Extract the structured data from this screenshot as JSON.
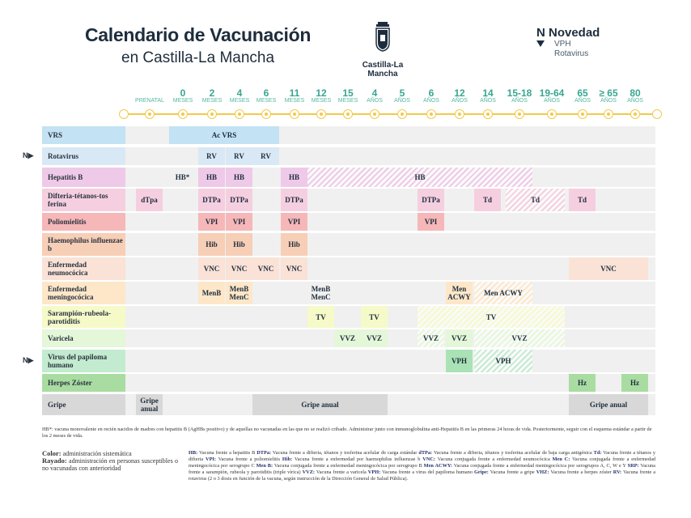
{
  "header": {
    "title": "Calendario de Vacunación",
    "subtitle": "en Castilla-La Mancha",
    "logo_text": "Castilla-La Mancha",
    "novedad": {
      "title": "N Novedad",
      "items": [
        "VPH",
        "Rotavirus"
      ]
    }
  },
  "columns": [
    {
      "n": "",
      "u": "PRENATAL"
    },
    {
      "n": "0",
      "u": "MESES"
    },
    {
      "n": "2",
      "u": "MESES"
    },
    {
      "n": "4",
      "u": "MESES"
    },
    {
      "n": "6",
      "u": "MESES"
    },
    {
      "n": "11",
      "u": "MESES"
    },
    {
      "n": "12",
      "u": "MESES"
    },
    {
      "n": "15",
      "u": "MESES"
    },
    {
      "n": "4",
      "u": "AÑOS"
    },
    {
      "n": "5",
      "u": "AÑOS"
    },
    {
      "n": "6",
      "u": "AÑOS"
    },
    {
      "n": "12",
      "u": "AÑOS"
    },
    {
      "n": "14",
      "u": "AÑOS"
    },
    {
      "n": "15-18",
      "u": "AÑOS"
    },
    {
      "n": "19-64",
      "u": "AÑOS"
    },
    {
      "n": "65",
      "u": "AÑOS"
    },
    {
      "n": "≥ 65",
      "u": "AÑOS"
    },
    {
      "n": "80",
      "u": "AÑOS"
    }
  ],
  "novedad_mark": "N▶",
  "rows": [
    {
      "label": "VRS",
      "color": "#c3e2f3",
      "cells": [
        {
          "s": 1,
          "e": 4,
          "t": "Ac VRS",
          "k": "solid"
        }
      ]
    },
    {
      "label": "Rotavirus",
      "color": "#d9e8f5",
      "novedad": true,
      "cells": [
        {
          "s": 2,
          "e": 2,
          "t": "RV",
          "k": "solid"
        },
        {
          "s": 3,
          "e": 3,
          "t": "RV",
          "k": "solid"
        },
        {
          "s": 4,
          "e": 4,
          "t": "RV",
          "k": "solid"
        }
      ]
    },
    {
      "label": "Hepatitis B",
      "color": "#efc9e8",
      "cells": [
        {
          "s": 1,
          "e": 1,
          "t": "HB*",
          "k": "plain"
        },
        {
          "s": 2,
          "e": 2,
          "t": "HB",
          "k": "solid"
        },
        {
          "s": 3,
          "e": 3,
          "t": "HB",
          "k": "solid"
        },
        {
          "s": 5,
          "e": 5,
          "t": "HB",
          "k": "solid"
        },
        {
          "s": 6,
          "e": 13,
          "t": "HB",
          "k": "hatched"
        }
      ]
    },
    {
      "label": "Difteria-tétanos-tos ferina",
      "color": "#f5cfe0",
      "cells": [
        {
          "s": 0,
          "e": 0,
          "t": "dTpa",
          "k": "solid"
        },
        {
          "s": 2,
          "e": 2,
          "t": "DTPa",
          "k": "solid"
        },
        {
          "s": 3,
          "e": 3,
          "t": "DTPa",
          "k": "solid"
        },
        {
          "s": 5,
          "e": 5,
          "t": "DTPa",
          "k": "solid"
        },
        {
          "s": 10,
          "e": 10,
          "t": "DTPa",
          "k": "solid"
        },
        {
          "s": 12,
          "e": 12,
          "t": "Td",
          "k": "solid"
        },
        {
          "s": 13,
          "e": 14,
          "t": "Td",
          "k": "hatched"
        },
        {
          "s": 15,
          "e": 15,
          "t": "Td",
          "k": "solid"
        }
      ]
    },
    {
      "label": "Poliomielitis",
      "color": "#f6b7b9",
      "cells": [
        {
          "s": 2,
          "e": 2,
          "t": "VPI",
          "k": "solid"
        },
        {
          "s": 3,
          "e": 3,
          "t": "VPI",
          "k": "solid"
        },
        {
          "s": 5,
          "e": 5,
          "t": "VPI",
          "k": "solid"
        },
        {
          "s": 10,
          "e": 10,
          "t": "VPI",
          "k": "solid"
        }
      ]
    },
    {
      "label": "Haemophilus influenzae b",
      "color": "#f7ceb6",
      "cells": [
        {
          "s": 2,
          "e": 2,
          "t": "Hib",
          "k": "solid"
        },
        {
          "s": 3,
          "e": 3,
          "t": "Hib",
          "k": "solid"
        },
        {
          "s": 5,
          "e": 5,
          "t": "Hib",
          "k": "solid"
        }
      ]
    },
    {
      "label": "Enfermedad neumocócica",
      "color": "#fae2d6",
      "cells": [
        {
          "s": 2,
          "e": 2,
          "t": "VNC",
          "k": "solid"
        },
        {
          "s": 3,
          "e": 3,
          "t": "VNC",
          "k": "solid"
        },
        {
          "s": 4,
          "e": 4,
          "t": "VNC",
          "k": "solid"
        },
        {
          "s": 5,
          "e": 5,
          "t": "VNC",
          "k": "solid"
        },
        {
          "s": 15,
          "e": 17,
          "t": "VNC",
          "k": "solid"
        }
      ]
    },
    {
      "label": "Enfermedad meningocócica",
      "color": "#fde7c8",
      "cells": [
        {
          "s": 2,
          "e": 2,
          "t": "MenB",
          "k": "solid"
        },
        {
          "s": 3,
          "e": 3,
          "t": "MenB MenC",
          "k": "solid"
        },
        {
          "s": 6,
          "e": 6,
          "t": "MenB MenC",
          "k": "plain"
        },
        {
          "s": 11,
          "e": 11,
          "t": "Men ACWY",
          "k": "solid"
        },
        {
          "s": 12,
          "e": 13,
          "t": "Men ACWY",
          "k": "hatched"
        }
      ]
    },
    {
      "label": "Sarampión-rubeola-parotiditis",
      "color": "#f5fac8",
      "cells": [
        {
          "s": 6,
          "e": 6,
          "t": "TV",
          "k": "solid"
        },
        {
          "s": 8,
          "e": 8,
          "t": "TV",
          "k": "solid"
        },
        {
          "s": 10,
          "e": 14,
          "t": "TV",
          "k": "hatched"
        }
      ]
    },
    {
      "label": "Varicela",
      "color": "#e4f7d8",
      "cells": [
        {
          "s": 7,
          "e": 7,
          "t": "VVZ",
          "k": "solid"
        },
        {
          "s": 8,
          "e": 8,
          "t": "VVZ",
          "k": "solid"
        },
        {
          "s": 10,
          "e": 10,
          "t": "VVZ",
          "k": "hatched"
        },
        {
          "s": 11,
          "e": 11,
          "t": "VVZ",
          "k": "solid"
        },
        {
          "s": 12,
          "e": 14,
          "t": "VVZ",
          "k": "hatched"
        }
      ]
    },
    {
      "label": "Virus del papiloma humano",
      "color": "#c3ebcf",
      "novedad": true,
      "cells": [
        {
          "s": 11,
          "e": 11,
          "t": "VPH",
          "k": "solid",
          "c": "#a9e2b5"
        },
        {
          "s": 12,
          "e": 13,
          "t": "VPH",
          "k": "hatched"
        }
      ]
    },
    {
      "label": "Herpes Zóster",
      "color": "#a9dca1",
      "cells": [
        {
          "s": 15,
          "e": 15,
          "t": "Hz",
          "k": "solid"
        },
        {
          "s": 17,
          "e": 17,
          "t": "Hz",
          "k": "solid"
        }
      ]
    },
    {
      "label": "Gripe",
      "color": "#d8d8d8",
      "cells": [
        {
          "s": 0,
          "e": 0,
          "t": "Gripe anual",
          "k": "solid"
        },
        {
          "s": 4,
          "e": 8,
          "t": "Gripe anual",
          "k": "solid"
        },
        {
          "s": 15,
          "e": 17,
          "t": "Gripe anual",
          "k": "solid"
        }
      ]
    }
  ],
  "footnote": "HB*: vacuna monovalente en recién nacidos de madres con hepatitis B (AgHBs positivo) y de aquellas no vacunadas en las que no se realizó cribado. Administrar junto con inmunoglobulina anti-Hepatitis B en las primeras 24 horas de vida. Posteriormente, seguir con el esquema estándar a partir de los 2 meses de vida.",
  "legend": {
    "color_label": "Color:",
    "color_text": "administración sistemática",
    "hatch_label": "Rayado:",
    "hatch_text": "administración en personas susceptibles o no vacunadas con anterioridad"
  },
  "abbreviations": [
    {
      "a": "HB:",
      "d": "Vacuna frente a hepatitis B"
    },
    {
      "a": "DTPa:",
      "d": "Vacuna frente a difteria, tétanos y tosferina acelular de carga estándar"
    },
    {
      "a": "dTPa:",
      "d": "Vacuna frente a difteria, tétanos y tosferina acelular de baja carga antigénica"
    },
    {
      "a": "Td:",
      "d": "Vacuna frente a tétanos y difteria"
    },
    {
      "a": "VPI:",
      "d": "Vacuna frente a poliomielitis"
    },
    {
      "a": "Hib:",
      "d": "Vacuna frente a enfermedad por haemophilus influenzae b"
    },
    {
      "a": "VNC:",
      "d": "Vacuna conjugada frente a enfermedad neumocócica"
    },
    {
      "a": "Men C:",
      "d": "Vacuna conjugada frente a enfermedad meningocócica por serogrupo C"
    },
    {
      "a": "Men B:",
      "d": "Vacuna conjugada frente a enfermedad meningocócica por serogrupo B"
    },
    {
      "a": "Men ACWY:",
      "d": "Vacuna conjugada frente a enfermedad meningocócica por serogrupos A, C, W e Y"
    },
    {
      "a": "SRP:",
      "d": "Vacuna frente a sarampión, rubeola y parotiditis (triple vírica)"
    },
    {
      "a": "VVZ:",
      "d": "Vacuna frente a varicela"
    },
    {
      "a": "VPH:",
      "d": "Vacuna frente a virus del papiloma humano"
    },
    {
      "a": "Gripe:",
      "d": "Vacuna frente a gripe"
    },
    {
      "a": "VHZ:",
      "d": "Vacuna frente a herpes zóster"
    },
    {
      "a": "RV:",
      "d": "Vacuna frente a rotavirus (2 o 3 dosis en función de la vacuna, según instrucción de la Dirección General de Salud Pública)."
    }
  ]
}
